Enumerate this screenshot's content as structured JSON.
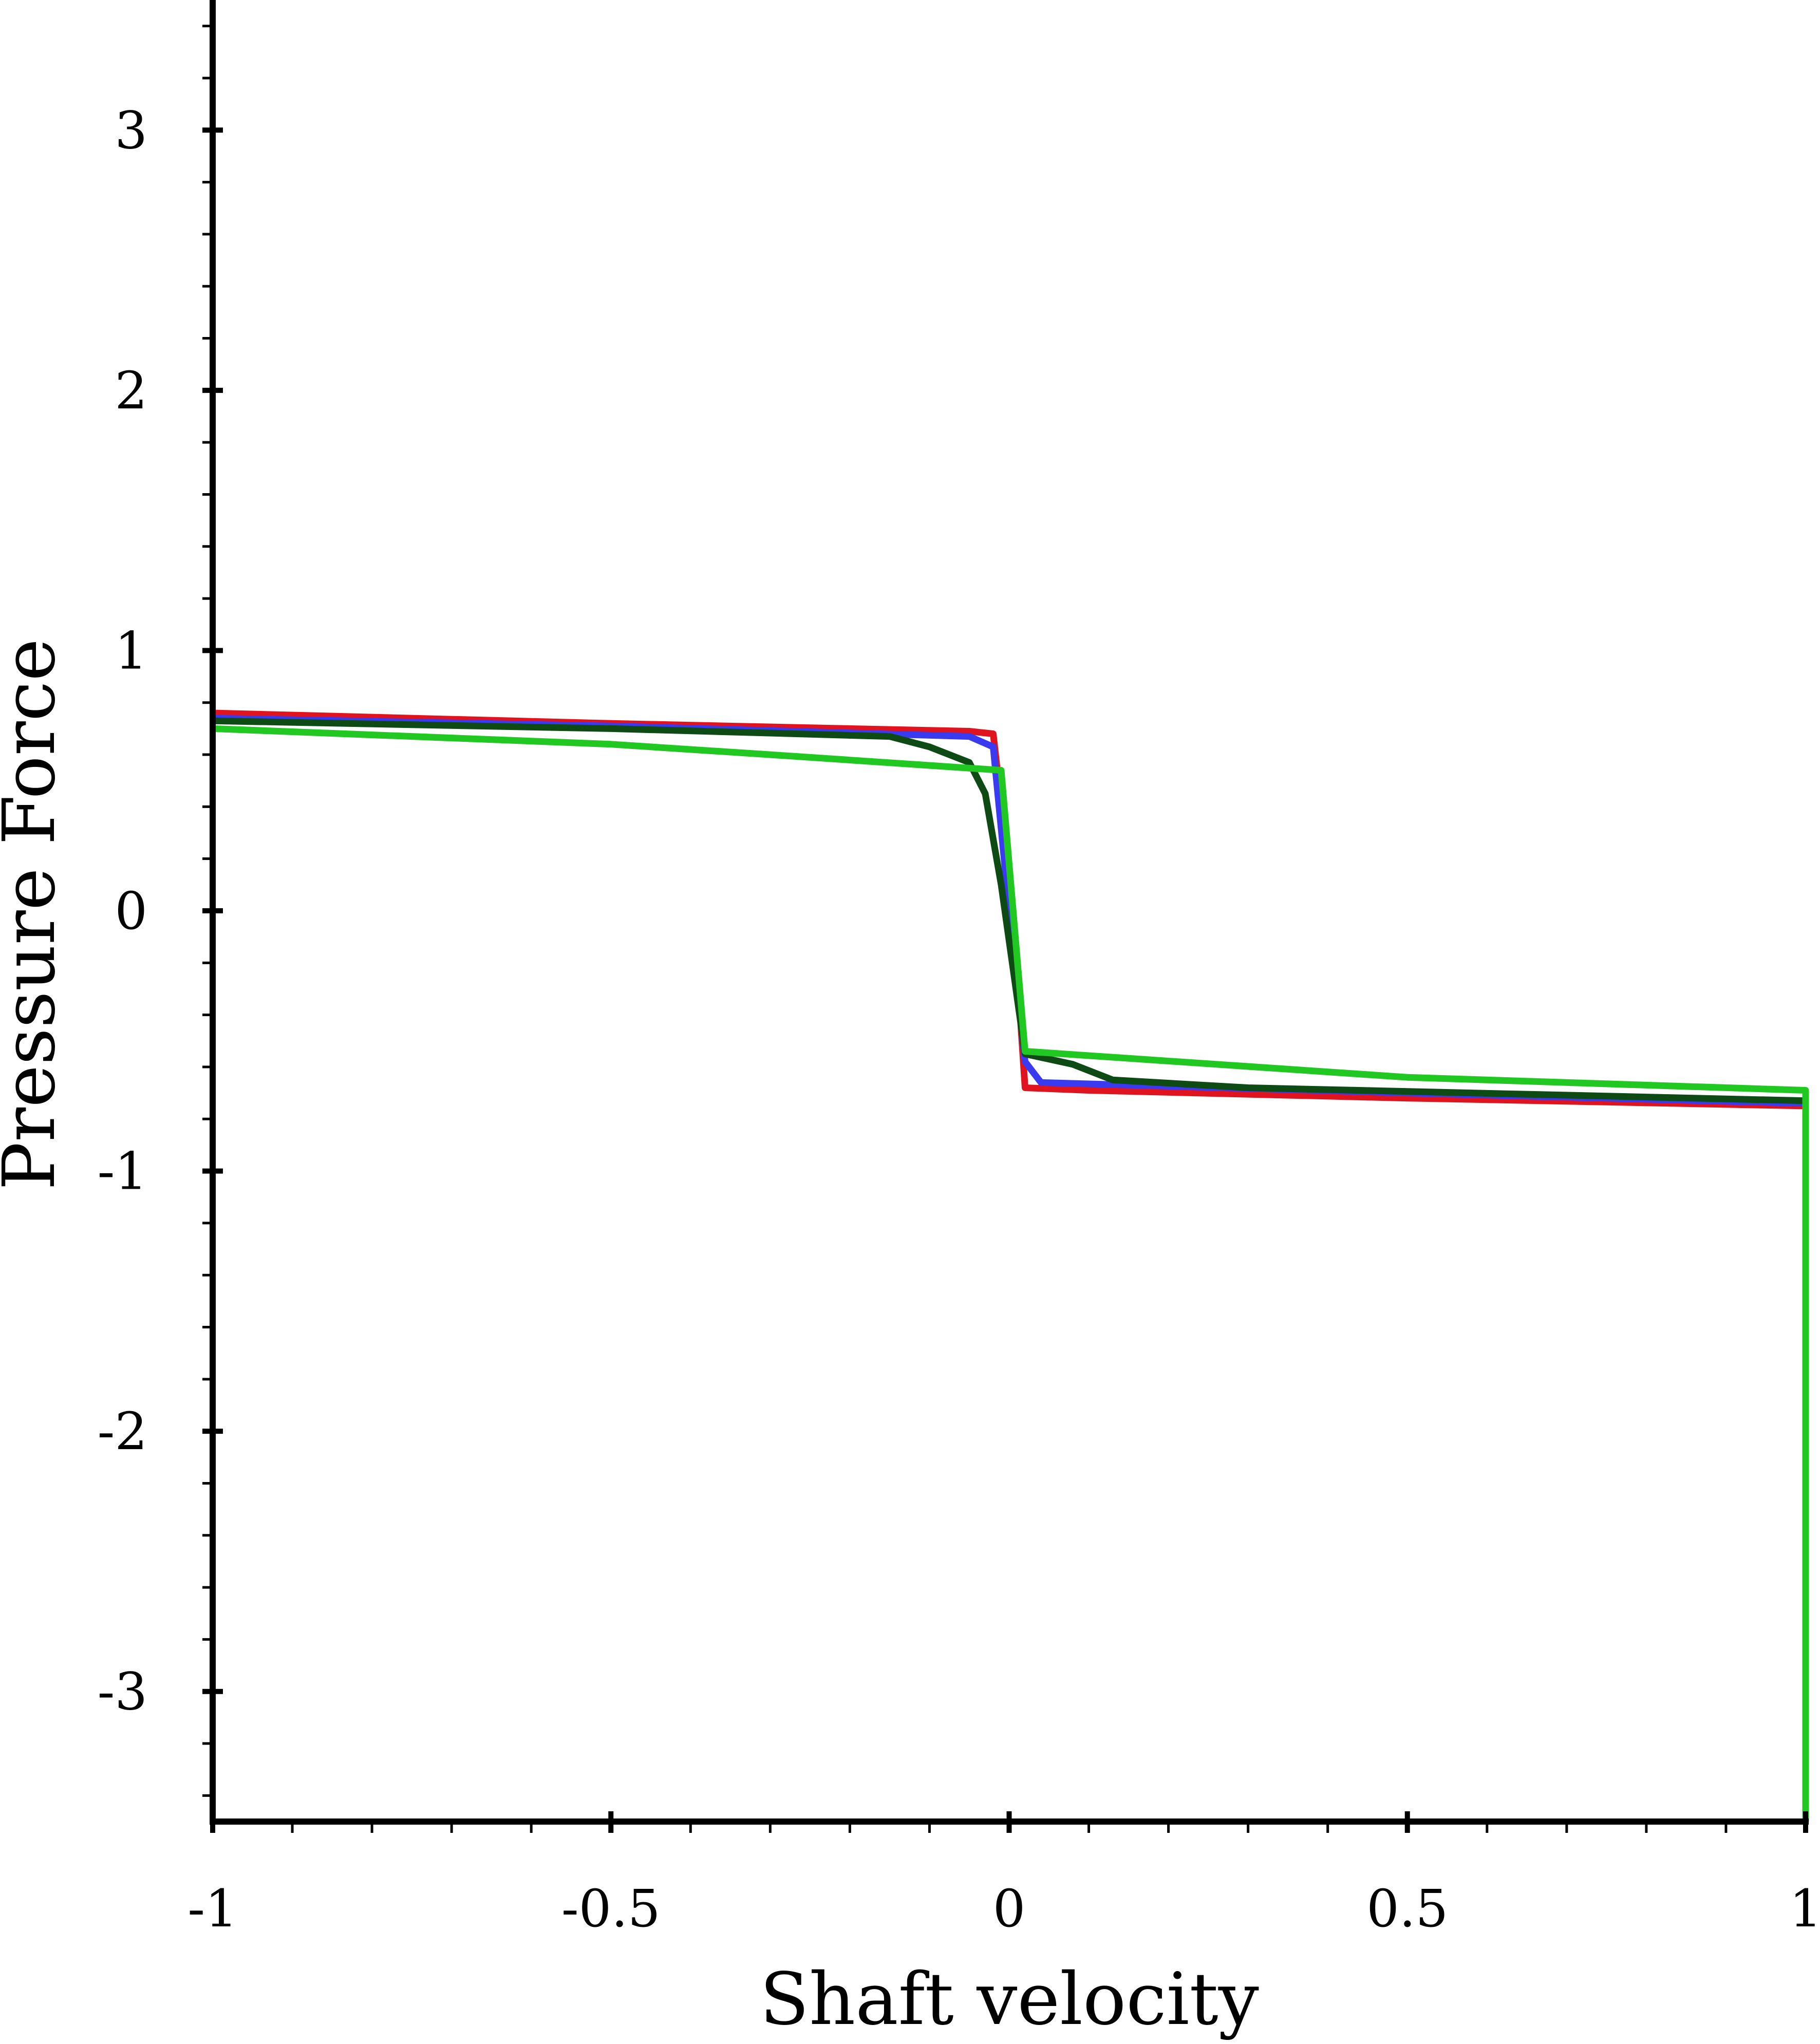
{
  "chart_data": {
    "type": "line",
    "x_label": "Shaft velocity",
    "y_label": "Pressure Force",
    "xlim": [
      -1,
      1
    ],
    "ylim": [
      -3.5,
      3.5
    ],
    "xticks": [
      -1,
      -0.5,
      0,
      0.5,
      1
    ],
    "yticks": [
      -3,
      -2,
      -1,
      0,
      1,
      2,
      3
    ],
    "xminorticks": [
      -0.9,
      -0.8,
      -0.7,
      -0.6,
      -0.4,
      -0.3,
      -0.2,
      -0.1,
      0.1,
      0.2,
      0.3,
      0.4,
      0.6,
      0.7,
      0.8,
      0.9
    ],
    "yminorticks": [
      -3.4,
      -3.2,
      -2.8,
      -2.6,
      -2.4,
      -2.2,
      -1.8,
      -1.6,
      -1.4,
      -1.2,
      -0.8,
      -0.6,
      -0.4,
      -0.2,
      0.2,
      0.4,
      0.6,
      0.8,
      1.2,
      1.4,
      1.6,
      1.8,
      2.2,
      2.4,
      2.6,
      2.8,
      3.2,
      3.4
    ],
    "series": [
      {
        "color": "#e0141e",
        "x": [
          -1,
          -0.5,
          -0.05,
          -0.02,
          0.005,
          0.02,
          0.1,
          0.5,
          1
        ],
        "values": [
          0.76,
          0.72,
          0.69,
          0.68,
          0,
          -0.68,
          -0.69,
          -0.72,
          -0.75
        ]
      },
      {
        "color": "#3a3af0",
        "x": [
          -1,
          -0.5,
          -0.05,
          -0.02,
          0,
          0.02,
          0.04,
          0.5,
          1
        ],
        "values": [
          0.74,
          0.71,
          0.67,
          0.63,
          0,
          -0.58,
          -0.66,
          -0.7,
          -0.74
        ]
      },
      {
        "color": "#0e4a14",
        "x": [
          -1,
          -0.5,
          -0.15,
          -0.1,
          -0.05,
          -0.03,
          -0.01,
          0.02,
          0.08,
          0.13,
          0.3,
          1
        ],
        "values": [
          0.73,
          0.7,
          0.67,
          0.63,
          0.57,
          0.45,
          0.1,
          -0.55,
          -0.59,
          -0.65,
          -0.68,
          -0.73
        ]
      },
      {
        "color": "#22c822",
        "x": [
          -1,
          -0.5,
          -0.3,
          -0.01,
          0.02,
          0.5,
          1,
          1
        ],
        "values": [
          0.7,
          0.64,
          0.6,
          0.54,
          -0.54,
          -0.64,
          -0.69,
          -3.5
        ]
      }
    ]
  }
}
